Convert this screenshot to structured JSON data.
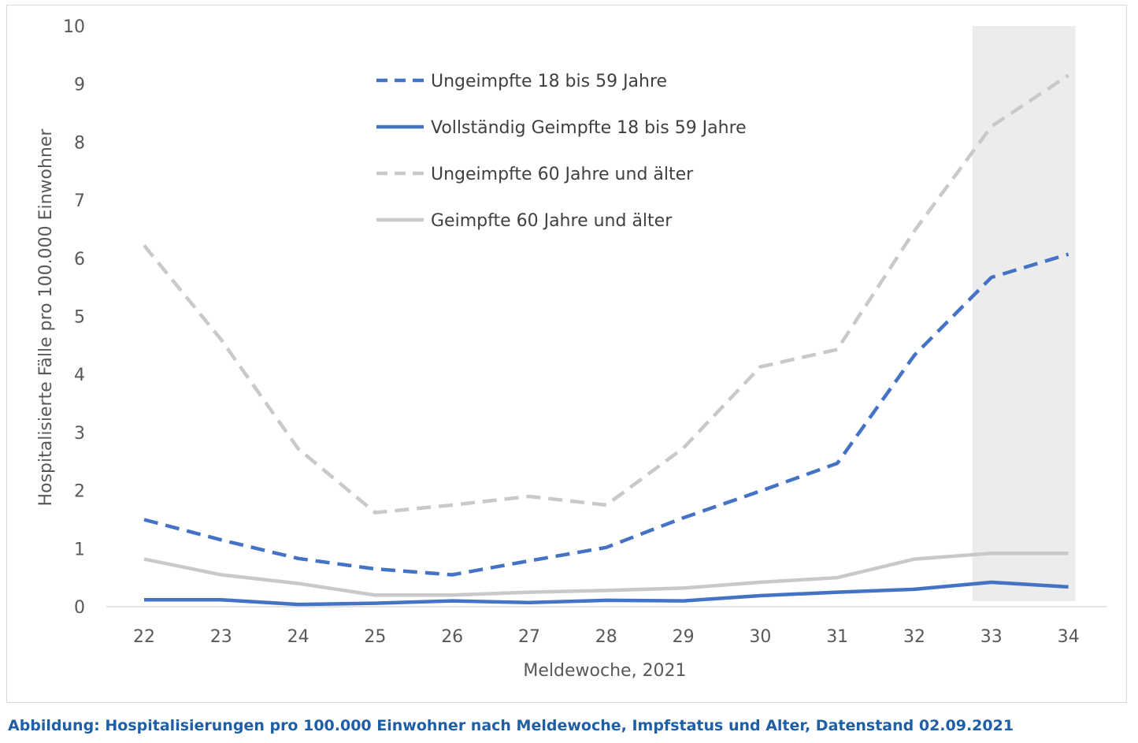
{
  "caption": "Abbildung: Hospitalisierungen pro 100.000 Einwohner nach Meldewoche, Impfstatus und Alter, Datenstand 02.09.2021",
  "chart_data": {
    "type": "line",
    "xlabel": "Meldewoche, 2021",
    "ylabel": "Hospitalisierte Fälle pro 100.000 Einwohner",
    "x": [
      22,
      23,
      24,
      25,
      26,
      27,
      28,
      29,
      30,
      31,
      32,
      33,
      34
    ],
    "ylim": [
      0,
      10
    ],
    "yticks": [
      0,
      1,
      2,
      3,
      4,
      5,
      6,
      7,
      8,
      9,
      10
    ],
    "grid": false,
    "legend_position": "top-center",
    "highlight_x_range": [
      33,
      34
    ],
    "highlight_color": "#ececec",
    "series": [
      {
        "name": "Ungeimpfte 18 bis 59 Jahre",
        "color": "#4472c4",
        "dash": "dashed",
        "values": [
          1.5,
          1.15,
          0.83,
          0.65,
          0.55,
          0.79,
          1.02,
          1.53,
          1.99,
          2.47,
          4.33,
          5.67,
          6.07
        ]
      },
      {
        "name": "Vollständig Geimpfte 18 bis 59 Jahre",
        "color": "#4472c4",
        "dash": "solid",
        "values": [
          0.12,
          0.12,
          0.04,
          0.06,
          0.1,
          0.07,
          0.11,
          0.1,
          0.19,
          0.25,
          0.3,
          0.42,
          0.34
        ]
      },
      {
        "name": "Ungeimpfte 60 Jahre und älter",
        "color": "#c9c9c9",
        "dash": "dashed",
        "values": [
          6.22,
          4.6,
          2.72,
          1.62,
          1.75,
          1.9,
          1.75,
          2.73,
          4.13,
          4.43,
          6.47,
          8.27,
          9.15
        ]
      },
      {
        "name": "Geimpfte 60 Jahre und älter",
        "color": "#c9c9c9",
        "dash": "solid",
        "values": [
          0.82,
          0.55,
          0.4,
          0.2,
          0.2,
          0.25,
          0.28,
          0.32,
          0.42,
          0.5,
          0.82,
          0.92,
          0.92
        ]
      }
    ]
  }
}
